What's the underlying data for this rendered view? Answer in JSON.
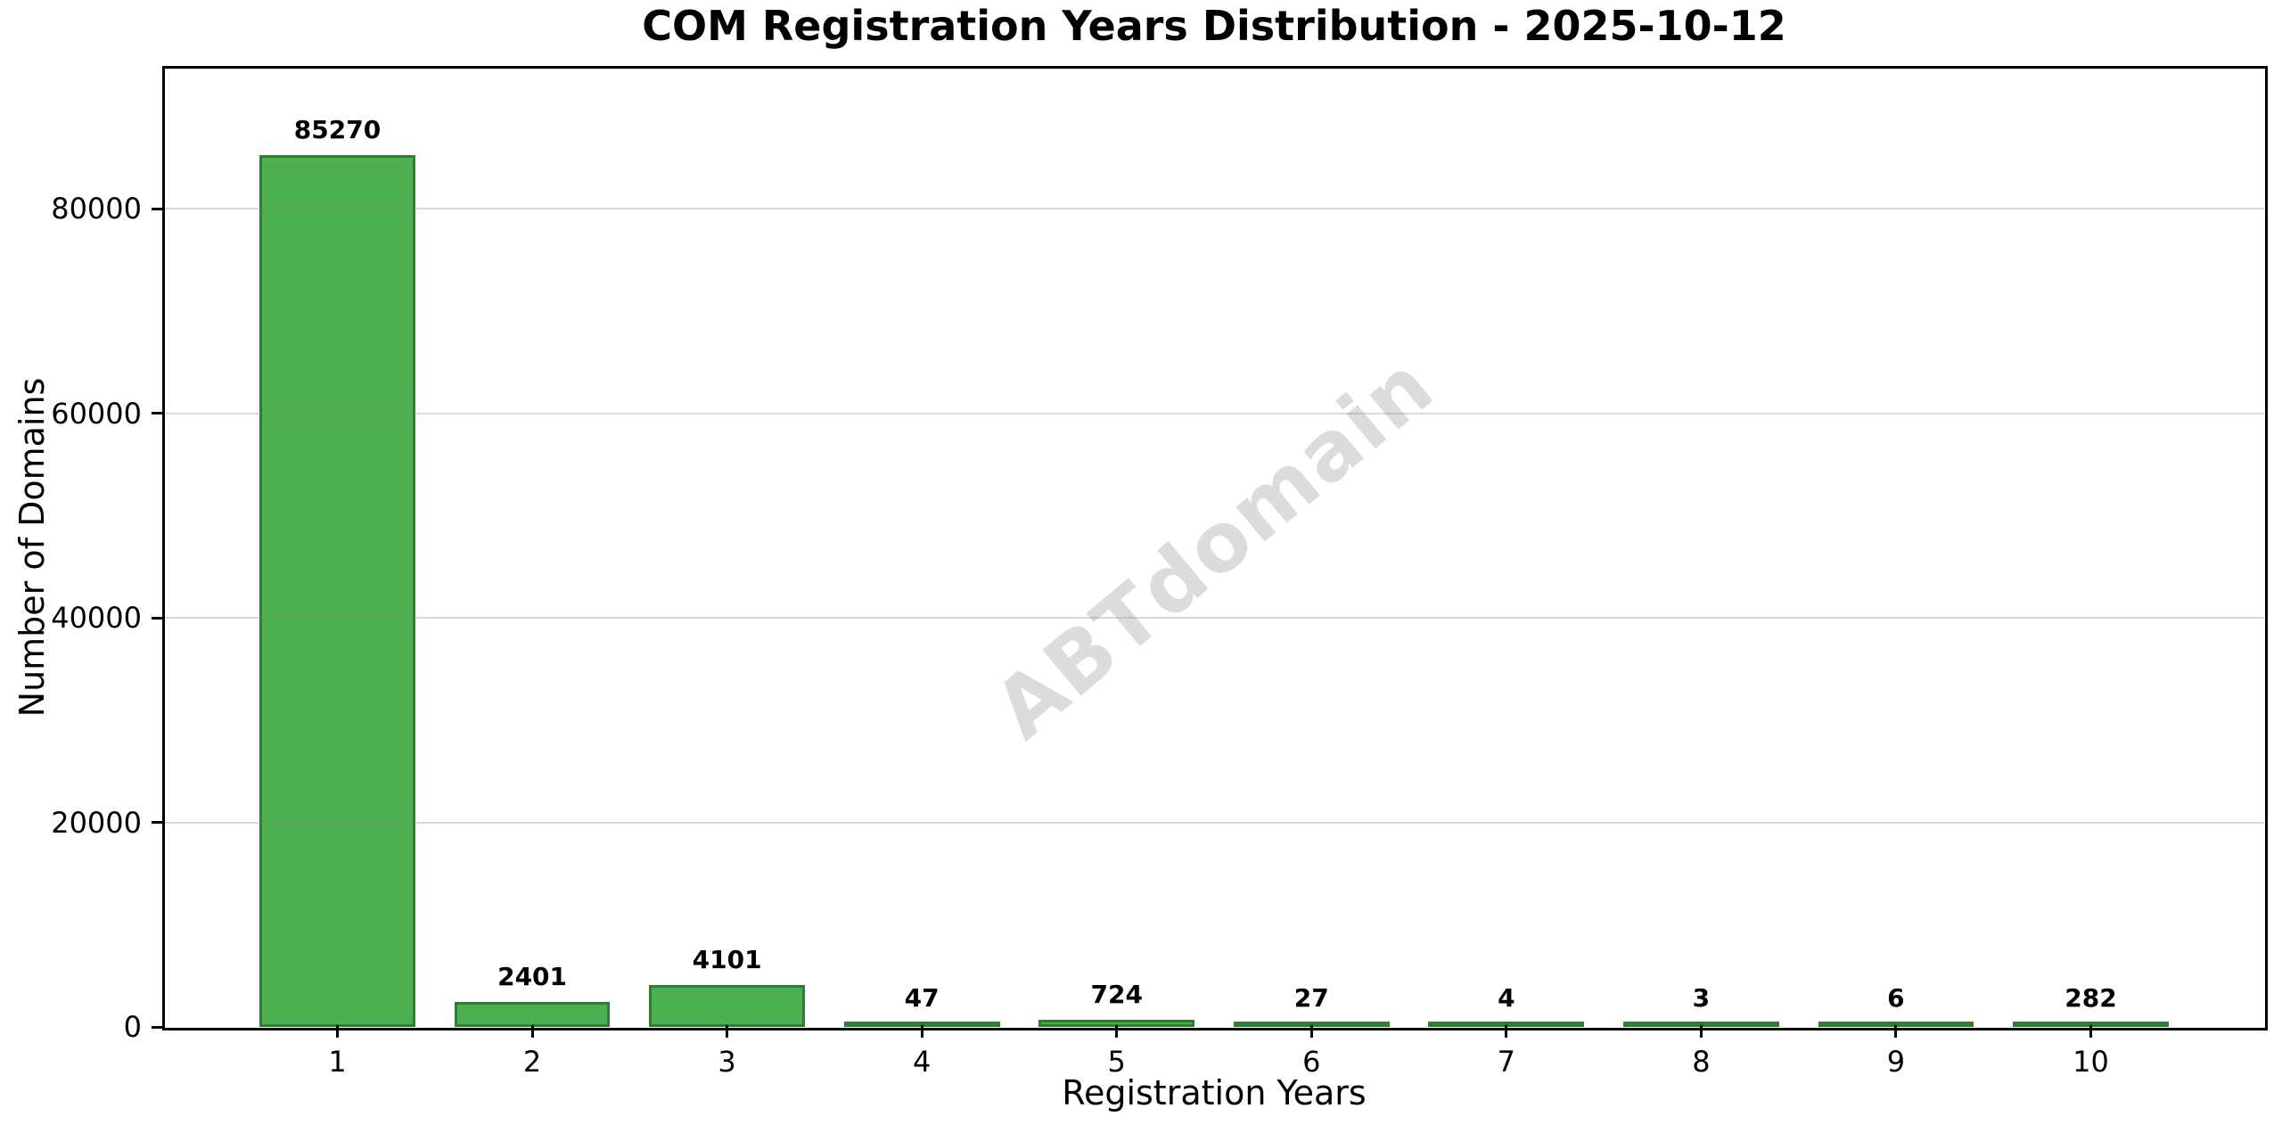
{
  "chart_data": {
    "type": "bar",
    "title": "COM Registration Years Distribution - 2025-10-12",
    "xlabel": "Registration Years",
    "ylabel": "Number of Domains",
    "watermark": "ABTdomain",
    "categories": [
      "1",
      "2",
      "3",
      "4",
      "5",
      "6",
      "7",
      "8",
      "9",
      "10"
    ],
    "values": [
      85270,
      2401,
      4101,
      47,
      724,
      27,
      4,
      3,
      6,
      282
    ],
    "yticks": [
      0,
      20000,
      40000,
      60000,
      80000
    ],
    "ylim": [
      0,
      93797
    ],
    "grid": "horizontal-only",
    "legend": "none",
    "bar_color": "#4CAF50",
    "bar_edge_color": "#2E7D32",
    "background_color": "#ffffff",
    "text_color": "#000000"
  }
}
